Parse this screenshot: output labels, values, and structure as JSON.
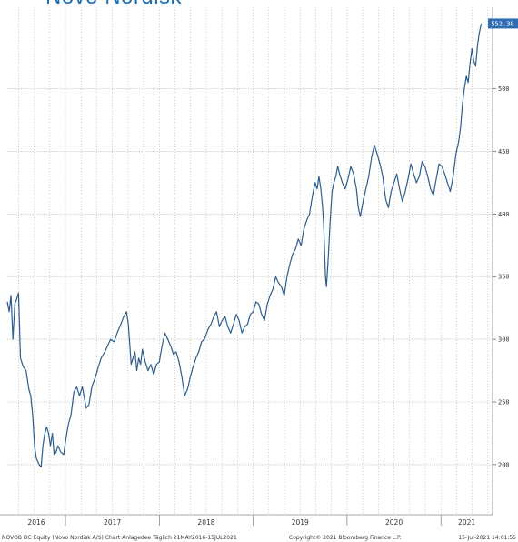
{
  "title": "Novo Nordisk",
  "footer": {
    "left": "NOVOB DC Equity (Novo Nordisk A/S) Chart Anlagedee Täglich 21MAY2016-15JUL2021",
    "center": "Copyright© 2021 Bloomberg Finance L.P.",
    "right": "15-Jul-2021 14:01:55"
  },
  "last_value_label": "552.30",
  "colors": {
    "line": "#2c5d8f",
    "grid": "#9a9a9a",
    "title": "#1f6fb2",
    "badge": "#2e6db4"
  },
  "chart_data": {
    "type": "line",
    "title": "Novo Nordisk",
    "xlabel": "",
    "ylabel": "",
    "x_ticks": [
      "2016",
      "2017",
      "2018",
      "2019",
      "2020",
      "2021"
    ],
    "y_ticks": [
      200,
      250,
      300,
      350,
      400,
      450,
      500
    ],
    "ylim": [
      160,
      565
    ],
    "xlim": [
      2016.38,
      2021.55
    ],
    "grid": true,
    "y_axis_side": "right",
    "series": [
      {
        "name": "",
        "points": [
          [
            2016.38,
            330
          ],
          [
            2016.4,
            322
          ],
          [
            2016.42,
            335
          ],
          [
            2016.44,
            300
          ],
          [
            2016.46,
            328
          ],
          [
            2016.48,
            332
          ],
          [
            2016.5,
            337
          ],
          [
            2016.52,
            285
          ],
          [
            2016.55,
            278
          ],
          [
            2016.58,
            275
          ],
          [
            2016.61,
            260
          ],
          [
            2016.63,
            255
          ],
          [
            2016.65,
            240
          ],
          [
            2016.67,
            215
          ],
          [
            2016.69,
            205
          ],
          [
            2016.72,
            200
          ],
          [
            2016.74,
            198
          ],
          [
            2016.76,
            215
          ],
          [
            2016.78,
            225
          ],
          [
            2016.8,
            230
          ],
          [
            2016.82,
            225
          ],
          [
            2016.84,
            215
          ],
          [
            2016.86,
            225
          ],
          [
            2016.88,
            208
          ],
          [
            2016.9,
            210
          ],
          [
            2016.92,
            215
          ],
          [
            2016.95,
            210
          ],
          [
            2016.98,
            208
          ],
          [
            2017.0,
            218
          ],
          [
            2017.03,
            232
          ],
          [
            2017.06,
            240
          ],
          [
            2017.09,
            258
          ],
          [
            2017.12,
            262
          ],
          [
            2017.15,
            255
          ],
          [
            2017.18,
            262
          ],
          [
            2017.22,
            245
          ],
          [
            2017.25,
            248
          ],
          [
            2017.28,
            262
          ],
          [
            2017.32,
            270
          ],
          [
            2017.35,
            278
          ],
          [
            2017.38,
            285
          ],
          [
            2017.42,
            290
          ],
          [
            2017.45,
            295
          ],
          [
            2017.48,
            300
          ],
          [
            2017.52,
            298
          ],
          [
            2017.55,
            305
          ],
          [
            2017.58,
            310
          ],
          [
            2017.62,
            318
          ],
          [
            2017.65,
            322
          ],
          [
            2017.67,
            312
          ],
          [
            2017.7,
            280
          ],
          [
            2017.72,
            285
          ],
          [
            2017.74,
            290
          ],
          [
            2017.76,
            275
          ],
          [
            2017.78,
            285
          ],
          [
            2017.8,
            280
          ],
          [
            2017.82,
            292
          ],
          [
            2017.85,
            282
          ],
          [
            2017.88,
            275
          ],
          [
            2017.91,
            280
          ],
          [
            2017.94,
            272
          ],
          [
            2017.97,
            280
          ],
          [
            2018.0,
            282
          ],
          [
            2018.03,
            295
          ],
          [
            2018.06,
            305
          ],
          [
            2018.09,
            300
          ],
          [
            2018.12,
            295
          ],
          [
            2018.15,
            288
          ],
          [
            2018.18,
            290
          ],
          [
            2018.21,
            282
          ],
          [
            2018.24,
            270
          ],
          [
            2018.27,
            255
          ],
          [
            2018.3,
            260
          ],
          [
            2018.33,
            270
          ],
          [
            2018.36,
            278
          ],
          [
            2018.39,
            285
          ],
          [
            2018.42,
            290
          ],
          [
            2018.45,
            298
          ],
          [
            2018.48,
            300
          ],
          [
            2018.52,
            308
          ],
          [
            2018.55,
            312
          ],
          [
            2018.58,
            318
          ],
          [
            2018.61,
            322
          ],
          [
            2018.64,
            310
          ],
          [
            2018.67,
            315
          ],
          [
            2018.7,
            318
          ],
          [
            2018.73,
            310
          ],
          [
            2018.76,
            305
          ],
          [
            2018.79,
            312
          ],
          [
            2018.82,
            320
          ],
          [
            2018.85,
            315
          ],
          [
            2018.88,
            305
          ],
          [
            2018.91,
            310
          ],
          [
            2018.94,
            312
          ],
          [
            2018.97,
            320
          ],
          [
            2019.0,
            322
          ],
          [
            2019.03,
            330
          ],
          [
            2019.06,
            328
          ],
          [
            2019.09,
            320
          ],
          [
            2019.12,
            315
          ],
          [
            2019.15,
            328
          ],
          [
            2019.18,
            335
          ],
          [
            2019.21,
            340
          ],
          [
            2019.24,
            350
          ],
          [
            2019.27,
            345
          ],
          [
            2019.3,
            342
          ],
          [
            2019.33,
            335
          ],
          [
            2019.36,
            350
          ],
          [
            2019.39,
            360
          ],
          [
            2019.42,
            368
          ],
          [
            2019.45,
            372
          ],
          [
            2019.48,
            380
          ],
          [
            2019.51,
            375
          ],
          [
            2019.54,
            388
          ],
          [
            2019.57,
            395
          ],
          [
            2019.6,
            400
          ],
          [
            2019.62,
            410
          ],
          [
            2019.64,
            418
          ],
          [
            2019.66,
            425
          ],
          [
            2019.68,
            420
          ],
          [
            2019.7,
            430
          ],
          [
            2019.72,
            420
          ],
          [
            2019.74,
            405
          ],
          [
            2019.75,
            392
          ],
          [
            2019.76,
            372
          ],
          [
            2019.77,
            350
          ],
          [
            2019.78,
            342
          ],
          [
            2019.8,
            365
          ],
          [
            2019.82,
            395
          ],
          [
            2019.84,
            418
          ],
          [
            2019.86,
            425
          ],
          [
            2019.88,
            430
          ],
          [
            2019.9,
            438
          ],
          [
            2019.92,
            432
          ],
          [
            2019.95,
            425
          ],
          [
            2019.98,
            420
          ],
          [
            2020.01,
            428
          ],
          [
            2020.04,
            438
          ],
          [
            2020.07,
            432
          ],
          [
            2020.1,
            420
          ],
          [
            2020.12,
            405
          ],
          [
            2020.14,
            398
          ],
          [
            2020.17,
            410
          ],
          [
            2020.2,
            420
          ],
          [
            2020.23,
            430
          ],
          [
            2020.26,
            445
          ],
          [
            2020.29,
            455
          ],
          [
            2020.32,
            448
          ],
          [
            2020.35,
            440
          ],
          [
            2020.38,
            430
          ],
          [
            2020.41,
            412
          ],
          [
            2020.44,
            405
          ],
          [
            2020.47,
            418
          ],
          [
            2020.5,
            425
          ],
          [
            2020.53,
            432
          ],
          [
            2020.56,
            420
          ],
          [
            2020.59,
            410
          ],
          [
            2020.62,
            418
          ],
          [
            2020.65,
            428
          ],
          [
            2020.68,
            440
          ],
          [
            2020.71,
            432
          ],
          [
            2020.74,
            425
          ],
          [
            2020.77,
            430
          ],
          [
            2020.8,
            442
          ],
          [
            2020.83,
            438
          ],
          [
            2020.86,
            430
          ],
          [
            2020.89,
            420
          ],
          [
            2020.92,
            415
          ],
          [
            2020.95,
            428
          ],
          [
            2020.98,
            440
          ],
          [
            2021.01,
            438
          ],
          [
            2021.04,
            432
          ],
          [
            2021.07,
            425
          ],
          [
            2021.1,
            418
          ],
          [
            2021.13,
            430
          ],
          [
            2021.16,
            448
          ],
          [
            2021.19,
            458
          ],
          [
            2021.21,
            470
          ],
          [
            2021.23,
            488
          ],
          [
            2021.25,
            500
          ],
          [
            2021.27,
            510
          ],
          [
            2021.29,
            505
          ],
          [
            2021.31,
            520
          ],
          [
            2021.33,
            532
          ],
          [
            2021.35,
            522
          ],
          [
            2021.37,
            518
          ],
          [
            2021.39,
            535
          ],
          [
            2021.41,
            545
          ],
          [
            2021.43,
            552
          ]
        ]
      }
    ]
  }
}
